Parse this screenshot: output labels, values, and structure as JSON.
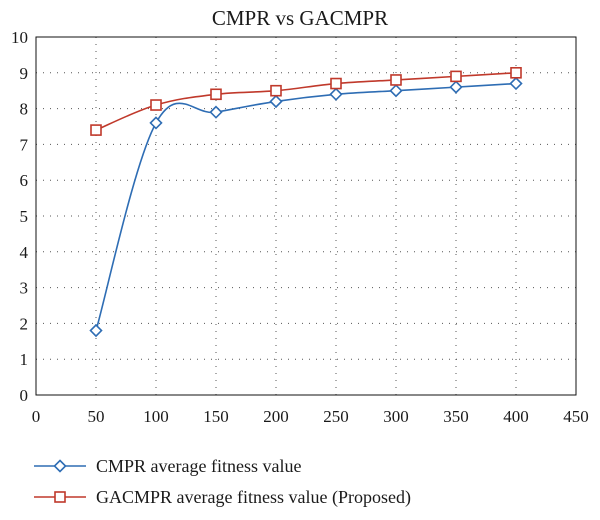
{
  "chart_data": {
    "type": "line",
    "title": "CMPR vs GACMPR",
    "xlabel": "",
    "ylabel": "",
    "xlim": [
      0,
      450
    ],
    "ylim": [
      0,
      10
    ],
    "xticks": [
      0,
      50,
      100,
      150,
      200,
      250,
      300,
      350,
      400,
      450
    ],
    "yticks": [
      0,
      1,
      2,
      3,
      4,
      5,
      6,
      7,
      8,
      9,
      10
    ],
    "grid": true,
    "legend_position": "bottom",
    "x": [
      50,
      100,
      150,
      200,
      250,
      300,
      350,
      400
    ],
    "series": [
      {
        "name": "CMPR average fitness value",
        "marker": "diamond",
        "color": "#2e6db4",
        "values": [
          1.8,
          7.6,
          7.9,
          8.2,
          8.4,
          8.5,
          8.6,
          8.7
        ]
      },
      {
        "name": "GACMPR average fitness value (Proposed)",
        "marker": "square",
        "color": "#c0392b",
        "values": [
          7.4,
          8.1,
          8.4,
          8.5,
          8.7,
          8.8,
          8.9,
          9.0
        ]
      }
    ]
  }
}
